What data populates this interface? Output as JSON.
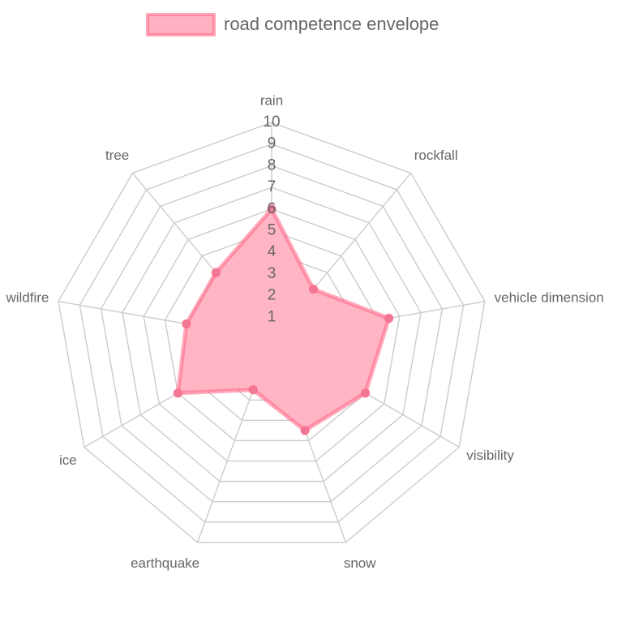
{
  "chart_data": {
    "type": "radar",
    "title": "",
    "axes": [
      "rain",
      "rockfall",
      "vehicle dimension",
      "visibility",
      "snow",
      "earthquake",
      "ice",
      "wildfire",
      "tree"
    ],
    "r_ticks": [
      "1",
      "2",
      "3",
      "4",
      "5",
      "6",
      "7",
      "8",
      "9",
      "10"
    ],
    "r_range": [
      0,
      10
    ],
    "grid": true,
    "legend_position": "top",
    "series": [
      {
        "name": "road competence envelope",
        "values": [
          6,
          3,
          5.5,
          5,
          4.5,
          2.5,
          5,
          4,
          4
        ],
        "fill_color": "#ffb1c1",
        "line_color": "#ff6384",
        "point_color": "#f07896"
      }
    ]
  }
}
